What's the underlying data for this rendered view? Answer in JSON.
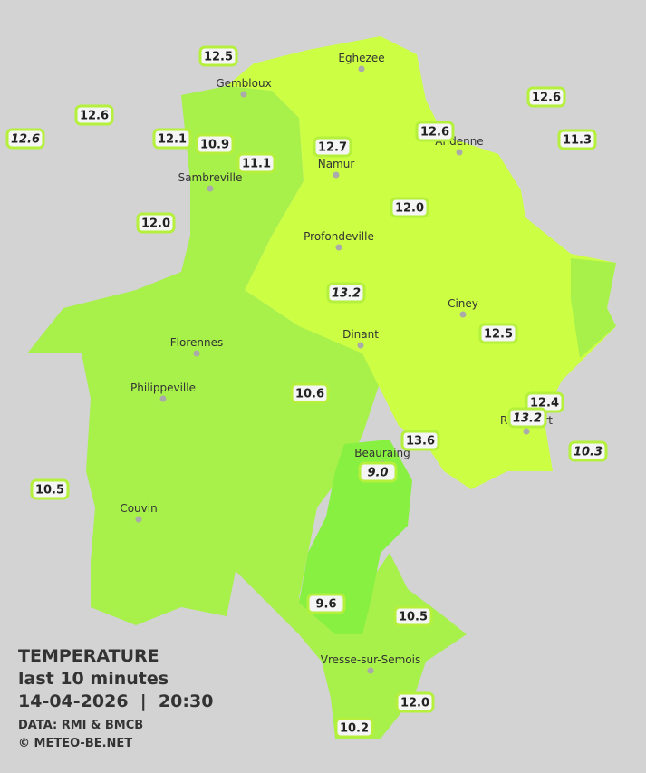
{
  "legend": {
    "title": "TEMPERATURE",
    "period": "last 10 minutes",
    "datetime": "14-04-2026  |  20:30",
    "source": "DATA: RMI & BMCB",
    "copyright": "© METEO-BE.NET"
  },
  "cities": [
    "Eghezee",
    "Gembloux",
    "Andenne",
    "Namur",
    "Sambreville",
    "Profondeville",
    "Ciney",
    "Dinant",
    "Florennes",
    "Philippeville",
    "Rochefort",
    "Beauraing",
    "Couvin",
    "Vresse-sur-Semois"
  ],
  "stations": [
    "12.5",
    "12.6",
    "12.6",
    "12.1",
    "10.9",
    "11.1",
    "12.7",
    "12.6",
    "12.6",
    "11.3",
    "12.0",
    "12.0",
    "13.2",
    "12.5",
    "10.6",
    "12.4",
    "13.2",
    "13.6",
    "10.3",
    "9.0",
    "10.5",
    "9.6",
    "10.5",
    "12.0",
    "10.2"
  ]
}
